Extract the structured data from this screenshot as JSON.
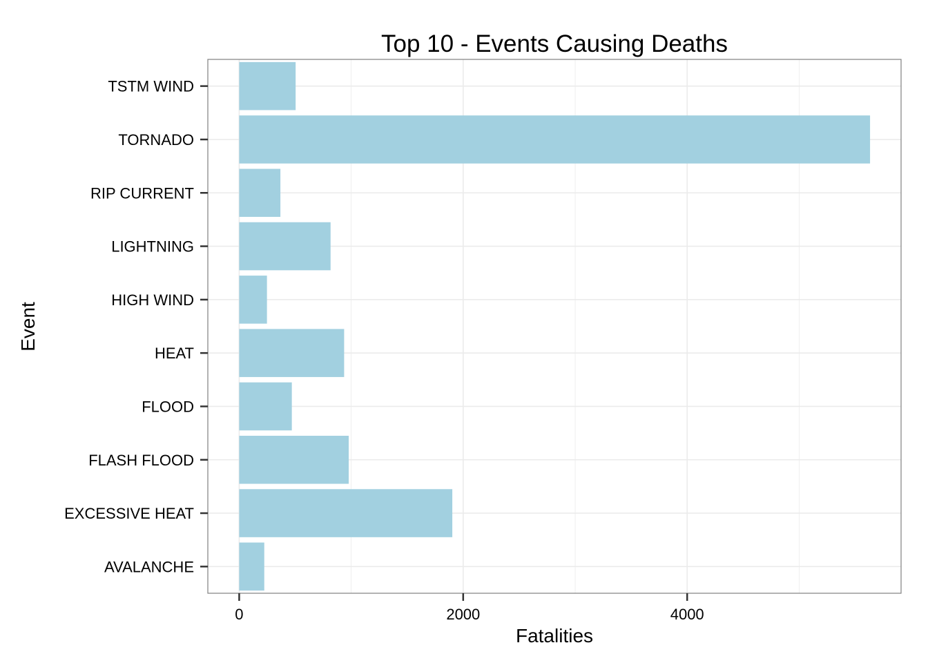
{
  "chart_data": {
    "type": "bar",
    "orientation": "horizontal",
    "title": "Top 10 - Events Causing Deaths",
    "xlabel": "Fatalities",
    "ylabel": "Event",
    "categories": [
      "AVALANCHE",
      "EXCESSIVE HEAT",
      "FLASH FLOOD",
      "FLOOD",
      "HEAT",
      "HIGH WIND",
      "LIGHTNING",
      "RIP CURRENT",
      "TORNADO",
      "TSTM WIND"
    ],
    "values": [
      224,
      1903,
      978,
      470,
      937,
      248,
      816,
      368,
      5633,
      504
    ],
    "xticks": [
      "0",
      "2000",
      "4000"
    ],
    "xlim": [
      -280,
      5910
    ],
    "grid": true,
    "bar_color": "#a2d0e0",
    "grid_color": "#ebebeb",
    "panel_border_color": "#7f7f7f"
  }
}
